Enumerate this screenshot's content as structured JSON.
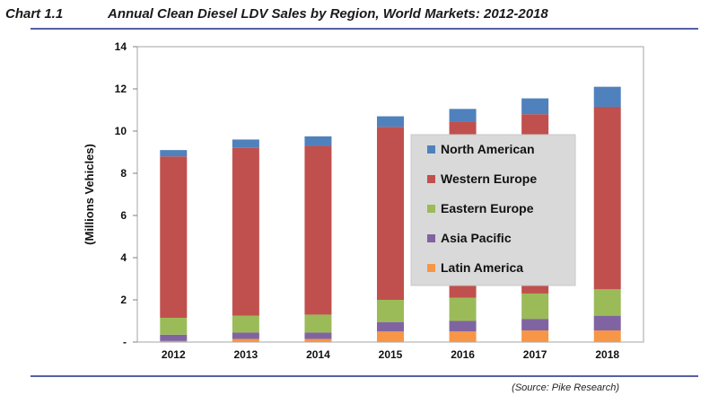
{
  "header": {
    "chart_number": "Chart 1.1",
    "title": "Annual Clean Diesel LDV Sales by Region, World Markets: 2012-2018"
  },
  "source": "(Source: Pike Research)",
  "chart_data": {
    "type": "bar",
    "stacked": true,
    "title": "Annual Clean Diesel LDV Sales by Region, World Markets: 2012-2018",
    "xlabel": "",
    "ylabel": "(Millions Vehicles)",
    "ylim": [
      0,
      14
    ],
    "yticks": [
      0,
      2,
      4,
      6,
      8,
      10,
      12,
      14
    ],
    "ytick_labels": [
      "-",
      "2",
      "4",
      "6",
      "8",
      "10",
      "12",
      "14"
    ],
    "grid": false,
    "legend_position": "center-right",
    "categories": [
      "2012",
      "2013",
      "2014",
      "2015",
      "2016",
      "2017",
      "2018"
    ],
    "series": [
      {
        "name": "Latin America",
        "color": "#f79646",
        "values": [
          0.05,
          0.15,
          0.15,
          0.5,
          0.5,
          0.55,
          0.55
        ]
      },
      {
        "name": "Asia Pacific",
        "color": "#8064a2",
        "values": [
          0.3,
          0.3,
          0.3,
          0.45,
          0.5,
          0.55,
          0.7
        ]
      },
      {
        "name": "Eastern Europe",
        "color": "#9bbb59",
        "values": [
          0.8,
          0.8,
          0.85,
          1.05,
          1.1,
          1.2,
          1.25
        ]
      },
      {
        "name": "Western Europe",
        "color": "#c0504d",
        "values": [
          7.65,
          7.95,
          8.0,
          8.2,
          8.35,
          8.5,
          8.65
        ]
      },
      {
        "name": "North American",
        "color": "#4f81bd",
        "values": [
          0.3,
          0.4,
          0.45,
          0.5,
          0.6,
          0.75,
          0.95
        ]
      }
    ],
    "legend_order": [
      "North American",
      "Western Europe",
      "Eastern Europe",
      "Asia Pacific",
      "Latin America"
    ],
    "colors": {
      "plot_border": "#a6a6a6",
      "legend_bg": "#d9d9d9",
      "rule": "#5561a3"
    }
  }
}
